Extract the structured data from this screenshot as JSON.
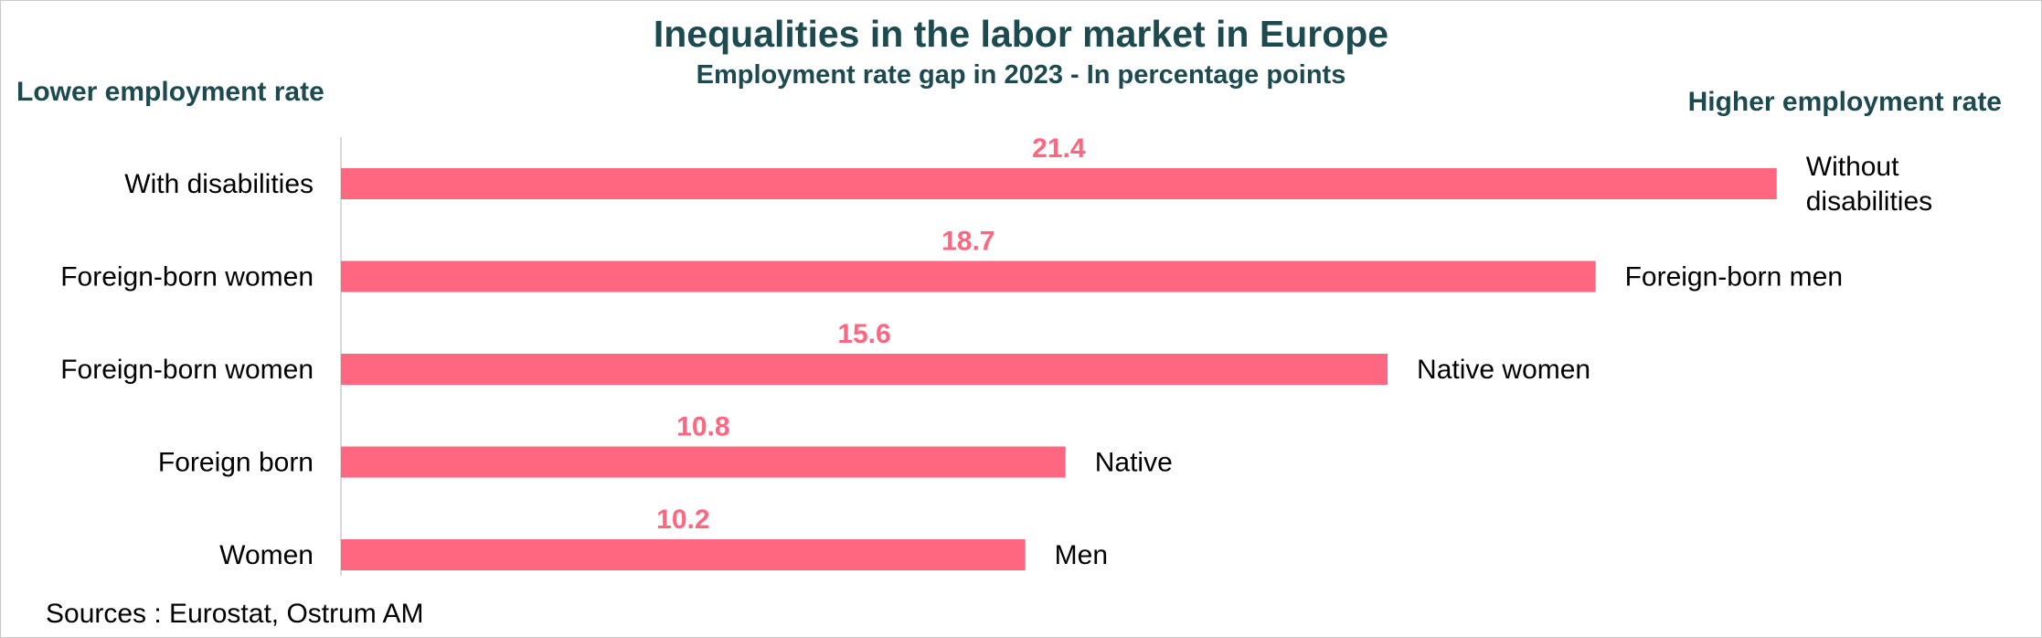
{
  "colors": {
    "bar": "#ff6680",
    "label": "#ff6680",
    "heading": "#1d4a4f",
    "axis": "#d9d9d9",
    "text": "#000000"
  },
  "header": {
    "title": "Inequalities in the labor market in Europe",
    "subtitle": "Employment rate gap in 2023 - In percentage points"
  },
  "side_labels": {
    "left": "Lower employment rate",
    "right": "Higher employment rate"
  },
  "footer": {
    "source": "Sources : Eurostat, Ostrum AM"
  },
  "chart_data": {
    "type": "bar",
    "orientation": "horizontal",
    "title": "Inequalities in the labor market in Europe",
    "subtitle": "Employment rate gap in 2023 - In percentage points",
    "categories": [
      "With disabilities",
      "Foreign-born women",
      "Foreign-born women",
      "Foreign born",
      "Women"
    ],
    "right_labels": [
      [
        "Without",
        "disabilities"
      ],
      [
        "Foreign-born men"
      ],
      [
        "Native women"
      ],
      [
        "Native"
      ],
      [
        "Men"
      ]
    ],
    "values": [
      21.4,
      18.7,
      15.6,
      10.8,
      10.2
    ],
    "data_labels": [
      "21.4",
      "18.7",
      "15.6",
      "10.8",
      "10.2"
    ],
    "xlim": [
      0,
      22
    ],
    "grid": false,
    "legend": "none"
  }
}
